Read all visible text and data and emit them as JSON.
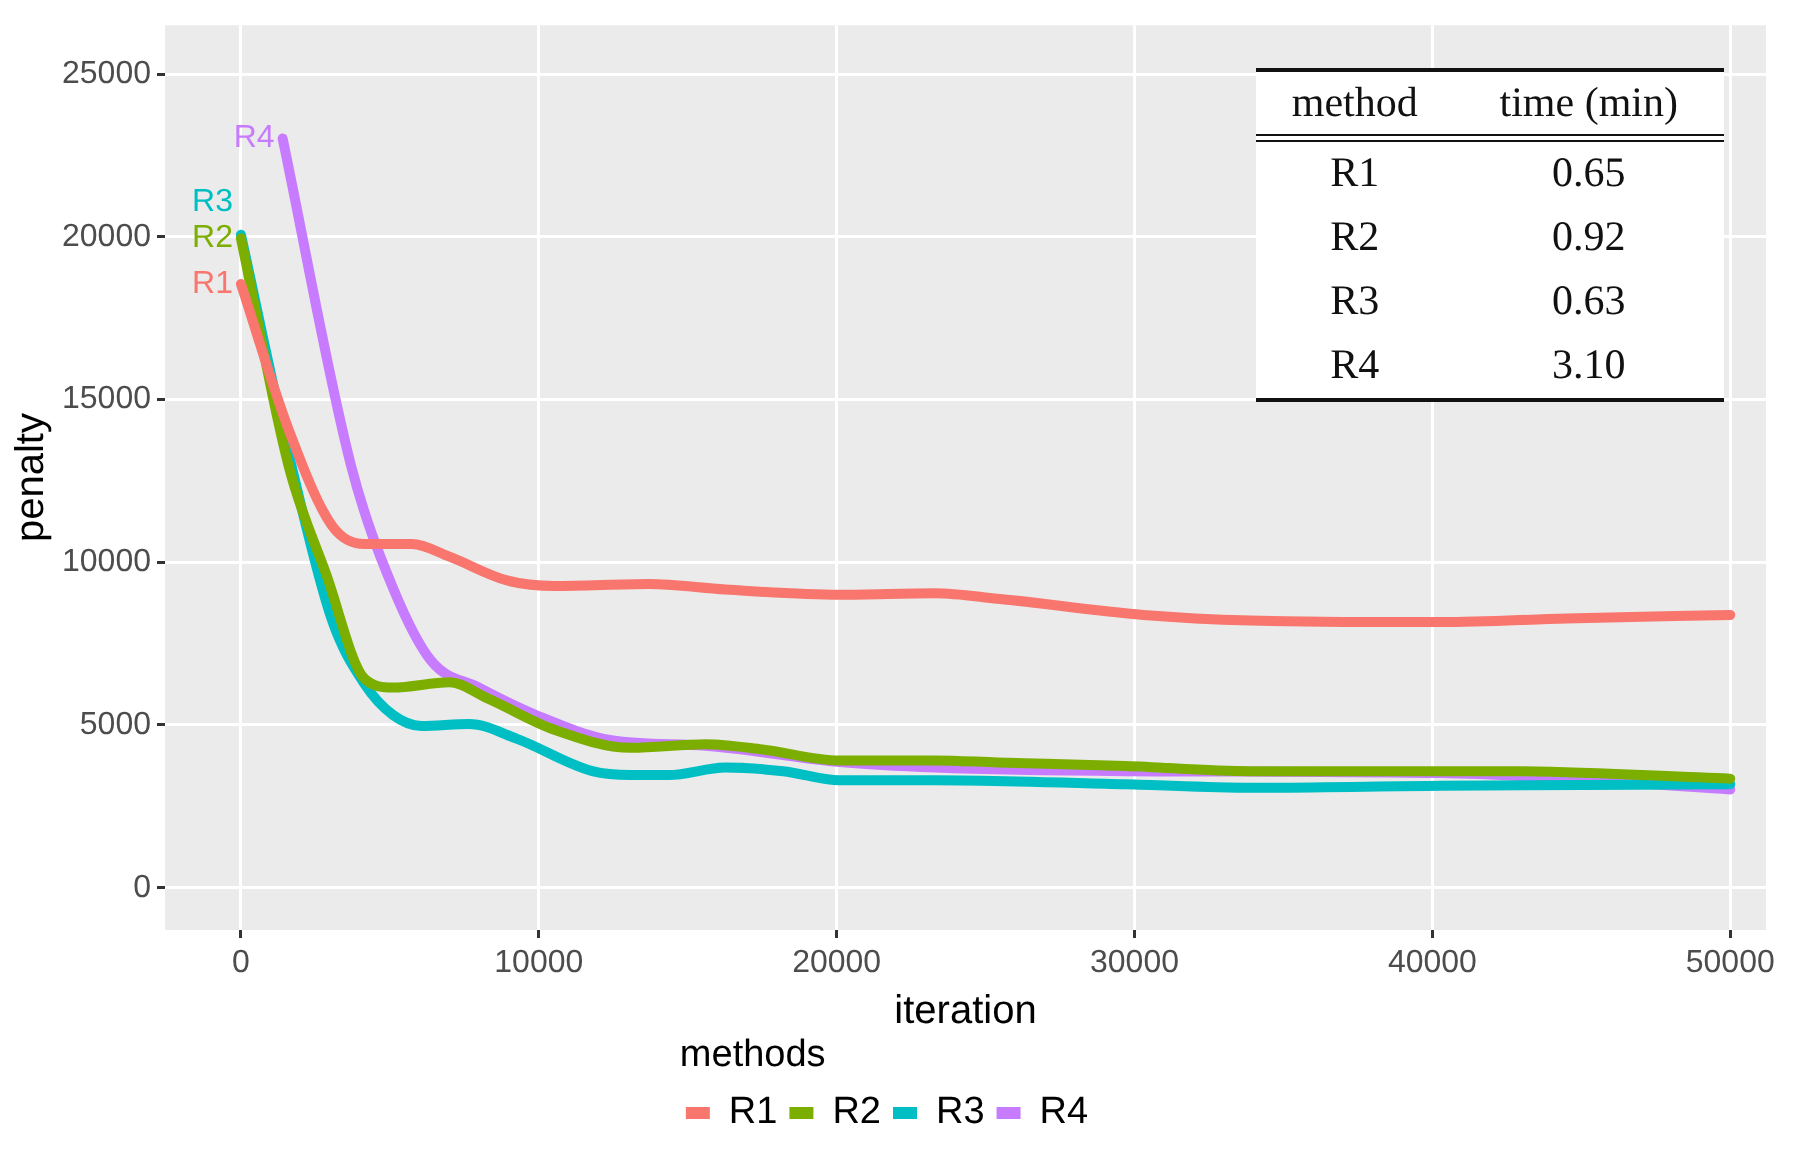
{
  "chart_data": [
    {
      "type": "line",
      "xlabel": "iteration",
      "ylabel": "penalty",
      "legend_title": "methods",
      "legend": "bottom",
      "grid": true,
      "line_style": "solid",
      "marker": "none",
      "xlim": [
        -2550,
        51200
      ],
      "xticks": [
        0,
        10000,
        20000,
        30000,
        40000,
        50000
      ],
      "ylim": [
        -1300,
        26500
      ],
      "yticks": [
        0,
        5000,
        10000,
        15000,
        20000,
        25000
      ],
      "series": [
        {
          "name": "R1",
          "color": "#f8766d",
          "x": [
            0,
            1600,
            3060,
            4150,
            5740,
            7000,
            8930,
            10530,
            13700,
            16270,
            20100,
            23300,
            25400,
            30300,
            33900,
            40300,
            44500,
            50000
          ],
          "values": [
            18550,
            14080,
            11120,
            10560,
            10560,
            10170,
            9440,
            9270,
            9330,
            9160,
            9000,
            9050,
            8880,
            8380,
            8210,
            8160,
            8270,
            8380
          ]
        },
        {
          "name": "R2",
          "color": "#7cae00",
          "x": [
            0,
            1600,
            2870,
            4150,
            5100,
            7000,
            8300,
            10500,
            13100,
            15600,
            17500,
            20100,
            23300,
            25400,
            29700,
            33900,
            42400,
            50000
          ],
          "values": [
            19950,
            12960,
            9610,
            6420,
            6150,
            6310,
            5810,
            4860,
            4300,
            4410,
            4250,
            3910,
            3910,
            3850,
            3740,
            3580,
            3580,
            3350
          ]
        },
        {
          "name": "R3",
          "color": "#00bfc4",
          "x": [
            0,
            1700,
            3060,
            4150,
            5100,
            6060,
            7660,
            9250,
            11800,
            13100,
            14350,
            16270,
            18200,
            20100,
            23300,
            29700,
            33900,
            40300,
            50000
          ],
          "values": [
            20060,
            12960,
            8210,
            6260,
            5310,
            4970,
            5030,
            4580,
            3580,
            3460,
            3460,
            3690,
            3580,
            3300,
            3300,
            3180,
            3070,
            3130,
            3180
          ]
        },
        {
          "name": "R4",
          "color": "#c77cff",
          "x": [
            1400,
            3700,
            5100,
            6380,
            7980,
            9890,
            12440,
            15600,
            20100,
            23300,
            29700,
            40300,
            50000
          ],
          "values": [
            23020,
            12960,
            9220,
            6980,
            6150,
            5310,
            4530,
            4360,
            3860,
            3690,
            3580,
            3520,
            3020
          ]
        }
      ],
      "annotations": [
        "R1",
        "R2",
        "R3",
        "R4"
      ]
    },
    {
      "type": "other",
      "xlabel": "method",
      "ylabel": "time (min)",
      "categories": [
        "R1",
        "R2",
        "R3",
        "R4"
      ],
      "value_labels": [
        "0.65",
        "0.92",
        "0.63",
        "3.10"
      ]
    }
  ]
}
